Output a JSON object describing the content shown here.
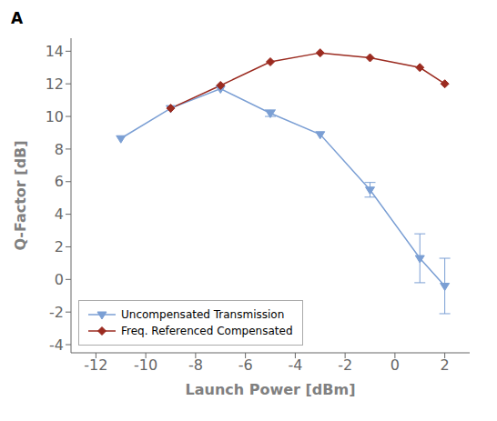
{
  "chart_data": {
    "type": "line",
    "title": "A",
    "xlabel": "Launch Power [dBm]",
    "ylabel": "Q-Factor [dB]",
    "x": [
      -11,
      -9,
      -7,
      -5,
      -3,
      -1,
      1,
      2
    ],
    "xlim": [
      -13,
      3
    ],
    "ylim": [
      -4.5,
      14.8
    ],
    "xticks": [
      -12,
      -10,
      -8,
      -6,
      -4,
      -2,
      0,
      2
    ],
    "yticks": [
      -4,
      -2,
      0,
      2,
      4,
      6,
      8,
      10,
      12,
      14
    ],
    "grid": false,
    "legend": "lower left",
    "series": [
      {
        "name": "Uncompensated Transmission",
        "color": "#7B9FD4",
        "marker": "triangle_down",
        "values": [
          8.65,
          10.5,
          11.7,
          10.2,
          8.9,
          5.5,
          1.3,
          -0.4
        ],
        "error": [
          0.0,
          0.0,
          0.0,
          0.2,
          0.0,
          0.45,
          1.5,
          1.7
        ]
      },
      {
        "name": "Freq. Referenced Compensated",
        "color": "#9B2B20",
        "marker": "diamond",
        "values": [
          null,
          10.5,
          11.9,
          13.35,
          13.9,
          13.6,
          13.0,
          12.0
        ],
        "error": [
          null,
          0.0,
          0.0,
          0.0,
          0.0,
          0.0,
          0.0,
          0.0
        ]
      }
    ]
  }
}
